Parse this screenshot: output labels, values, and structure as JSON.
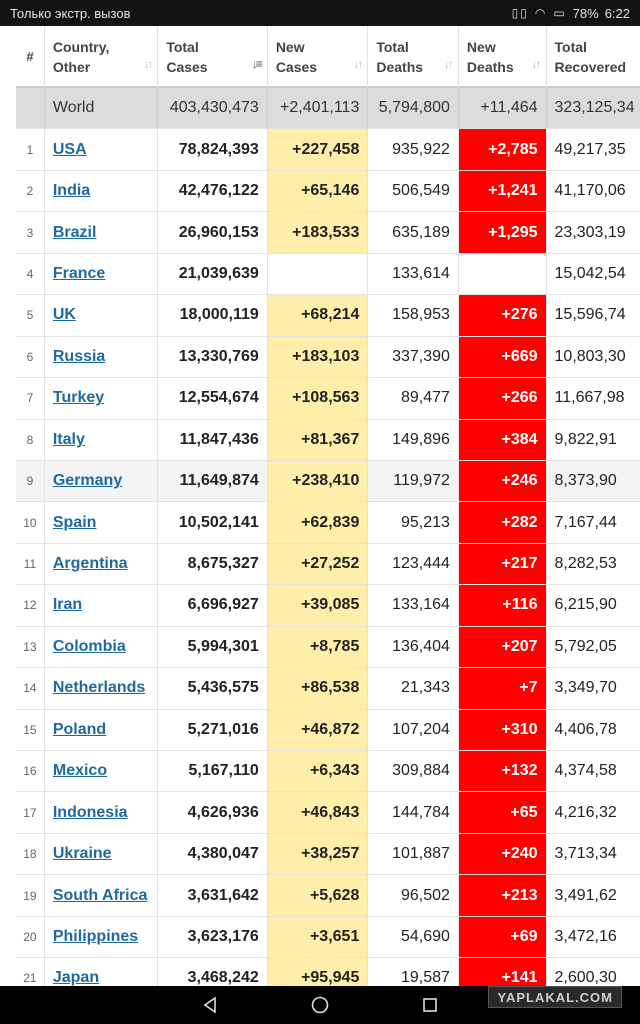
{
  "status_bar": {
    "left_text": "Только экстр. вызов",
    "battery": "78%",
    "time": "6:22",
    "icons": [
      "vibrate-icon",
      "wifi-icon",
      "battery-icon"
    ]
  },
  "headers": {
    "num": "#",
    "country": [
      "Country,",
      "Other"
    ],
    "total_cases": [
      "Total",
      "Cases"
    ],
    "new_cases": [
      "New",
      "Cases"
    ],
    "total_deaths": [
      "Total",
      "Deaths"
    ],
    "new_deaths": [
      "New",
      "Deaths"
    ],
    "total_recovered": [
      "Total",
      "Recovered"
    ]
  },
  "world": {
    "label": "World",
    "total_cases": "403,430,473",
    "new_cases": "+2,401,113",
    "total_deaths": "5,794,800",
    "new_deaths": "+11,464",
    "total_recovered": "323,125,34"
  },
  "rows": [
    {
      "num": "1",
      "country": "USA",
      "total": "78,824,393",
      "new": "+227,458",
      "deaths": "935,922",
      "new_deaths": "+2,785",
      "recovered": "49,217,35"
    },
    {
      "num": "2",
      "country": "India",
      "total": "42,476,122",
      "new": "+65,146",
      "deaths": "506,549",
      "new_deaths": "+1,241",
      "recovered": "41,170,06"
    },
    {
      "num": "3",
      "country": "Brazil",
      "total": "26,960,153",
      "new": "+183,533",
      "deaths": "635,189",
      "new_deaths": "+1,295",
      "recovered": "23,303,19"
    },
    {
      "num": "4",
      "country": "France",
      "total": "21,039,639",
      "new": "",
      "deaths": "133,614",
      "new_deaths": "",
      "recovered": "15,042,54"
    },
    {
      "num": "5",
      "country": "UK",
      "total": "18,000,119",
      "new": "+68,214",
      "deaths": "158,953",
      "new_deaths": "+276",
      "recovered": "15,596,74"
    },
    {
      "num": "6",
      "country": "Russia",
      "total": "13,330,769",
      "new": "+183,103",
      "deaths": "337,390",
      "new_deaths": "+669",
      "recovered": "10,803,30"
    },
    {
      "num": "7",
      "country": "Turkey",
      "total": "12,554,674",
      "new": "+108,563",
      "deaths": "89,477",
      "new_deaths": "+266",
      "recovered": "11,667,98"
    },
    {
      "num": "8",
      "country": "Italy",
      "total": "11,847,436",
      "new": "+81,367",
      "deaths": "149,896",
      "new_deaths": "+384",
      "recovered": "9,822,91"
    },
    {
      "num": "9",
      "country": "Germany",
      "total": "11,649,874",
      "new": "+238,410",
      "deaths": "119,972",
      "new_deaths": "+246",
      "recovered": "8,373,90"
    },
    {
      "num": "10",
      "country": "Spain",
      "total": "10,502,141",
      "new": "+62,839",
      "deaths": "95,213",
      "new_deaths": "+282",
      "recovered": "7,167,44"
    },
    {
      "num": "11",
      "country": "Argentina",
      "total": "8,675,327",
      "new": "+27,252",
      "deaths": "123,444",
      "new_deaths": "+217",
      "recovered": "8,282,53"
    },
    {
      "num": "12",
      "country": "Iran",
      "total": "6,696,927",
      "new": "+39,085",
      "deaths": "133,164",
      "new_deaths": "+116",
      "recovered": "6,215,90"
    },
    {
      "num": "13",
      "country": "Colombia",
      "total": "5,994,301",
      "new": "+8,785",
      "deaths": "136,404",
      "new_deaths": "+207",
      "recovered": "5,792,05"
    },
    {
      "num": "14",
      "country": "Netherlands",
      "total": "5,436,575",
      "new": "+86,538",
      "deaths": "21,343",
      "new_deaths": "+7",
      "recovered": "3,349,70"
    },
    {
      "num": "15",
      "country": "Poland",
      "total": "5,271,016",
      "new": "+46,872",
      "deaths": "107,204",
      "new_deaths": "+310",
      "recovered": "4,406,78"
    },
    {
      "num": "16",
      "country": "Mexico",
      "total": "5,167,110",
      "new": "+6,343",
      "deaths": "309,884",
      "new_deaths": "+132",
      "recovered": "4,374,58"
    },
    {
      "num": "17",
      "country": "Indonesia",
      "total": "4,626,936",
      "new": "+46,843",
      "deaths": "144,784",
      "new_deaths": "+65",
      "recovered": "4,216,32"
    },
    {
      "num": "18",
      "country": "Ukraine",
      "total": "4,380,047",
      "new": "+38,257",
      "deaths": "101,887",
      "new_deaths": "+240",
      "recovered": "3,713,34"
    },
    {
      "num": "19",
      "country": "South Africa",
      "total": "3,631,642",
      "new": "+5,628",
      "deaths": "96,502",
      "new_deaths": "+213",
      "recovered": "3,491,62"
    },
    {
      "num": "20",
      "country": "Philippines",
      "total": "3,623,176",
      "new": "+3,651",
      "deaths": "54,690",
      "new_deaths": "+69",
      "recovered": "3,472,16"
    },
    {
      "num": "21",
      "country": "Japan",
      "total": "3,468,242",
      "new": "+95,945",
      "deaths": "19,587",
      "new_deaths": "+141",
      "recovered": "2,600,30"
    }
  ],
  "colors": {
    "new_cases_bg": "#ffeeaa",
    "new_deaths_bg": "#ff0000",
    "link": "#1e6aa0",
    "world_bg": "#dcdcdc"
  },
  "nav": {
    "icons": [
      "back-icon",
      "home-icon",
      "recents-icon"
    ]
  },
  "watermark": "YAPLAKAL.COM"
}
